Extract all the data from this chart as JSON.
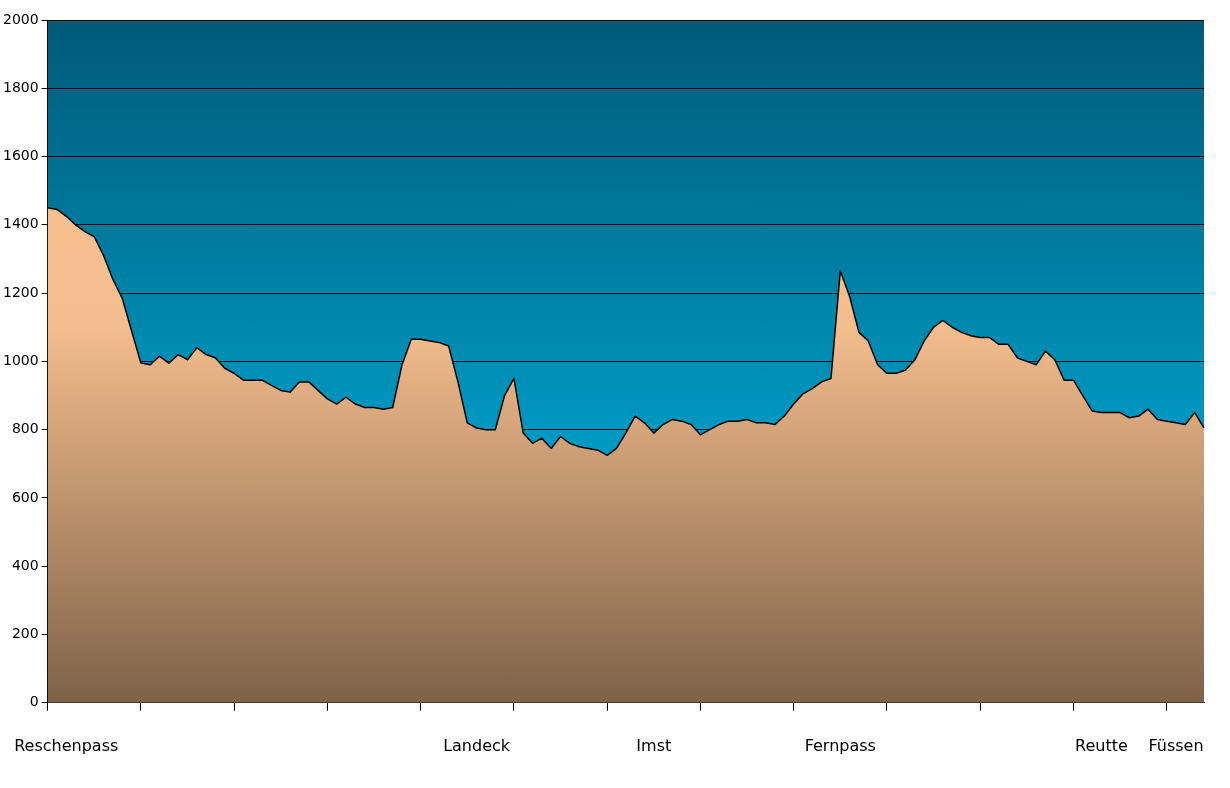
{
  "chart_data": {
    "type": "area",
    "categories": [
      null,
      null,
      "Reschenpass",
      null,
      null,
      null,
      null,
      null,
      null,
      null,
      null,
      null,
      null,
      null,
      null,
      null,
      null,
      null,
      null,
      null,
      null,
      null,
      null,
      null,
      null,
      null,
      null,
      null,
      null,
      null,
      null,
      null,
      null,
      null,
      null,
      null,
      null,
      null,
      null,
      null,
      null,
      null,
      null,
      null,
      null,
      null,
      "Landeck",
      null,
      null,
      null,
      null,
      null,
      null,
      null,
      null,
      null,
      null,
      null,
      null,
      null,
      null,
      null,
      null,
      null,
      null,
      "Imst",
      null,
      null,
      null,
      null,
      null,
      null,
      null,
      null,
      null,
      null,
      null,
      null,
      null,
      null,
      null,
      null,
      null,
      null,
      null,
      "Fernpass",
      null,
      null,
      null,
      null,
      null,
      null,
      null,
      null,
      null,
      null,
      null,
      null,
      null,
      null,
      null,
      null,
      null,
      null,
      null,
      null,
      null,
      null,
      null,
      null,
      null,
      null,
      null,
      "Reutte",
      null,
      null,
      null,
      null,
      null,
      null,
      null,
      "Füssen",
      null,
      null,
      null
    ],
    "series": [
      {
        "color": "#fcc391",
        "values": [
          1450,
          1445,
          1425,
          1400,
          1380,
          1365,
          1310,
          1240,
          1185,
          1090,
          995,
          990,
          1015,
          995,
          1020,
          1005,
          1040,
          1020,
          1010,
          980,
          965,
          945,
          945,
          945,
          930,
          915,
          910,
          940,
          940,
          915,
          890,
          875,
          895,
          875,
          865,
          865,
          860,
          865,
          990,
          1065,
          1065,
          1060,
          1055,
          1045,
          940,
          820,
          805,
          800,
          800,
          900,
          950,
          790,
          760,
          775,
          745,
          780,
          760,
          750,
          745,
          740,
          725,
          745,
          790,
          840,
          820,
          790,
          815,
          830,
          825,
          815,
          785,
          800,
          815,
          825,
          825,
          830,
          820,
          820,
          815,
          840,
          875,
          905,
          920,
          940,
          950,
          1265,
          1190,
          1085,
          1060,
          990,
          965,
          965,
          975,
          1005,
          1060,
          1100,
          1120,
          1100,
          1085,
          1075,
          1070,
          1070,
          1050,
          1050,
          1010,
          1000,
          990,
          1030,
          1005,
          945,
          945,
          900,
          855,
          850,
          850,
          850,
          835,
          840,
          860,
          830,
          825,
          820,
          815,
          850,
          805
        ]
      }
    ],
    "ylim": [
      0,
      2000
    ],
    "yticks": [
      0,
      200,
      400,
      600,
      800,
      1000,
      1200,
      1400,
      1600,
      1800,
      2000
    ],
    "grid": "y",
    "legend": false
  }
}
